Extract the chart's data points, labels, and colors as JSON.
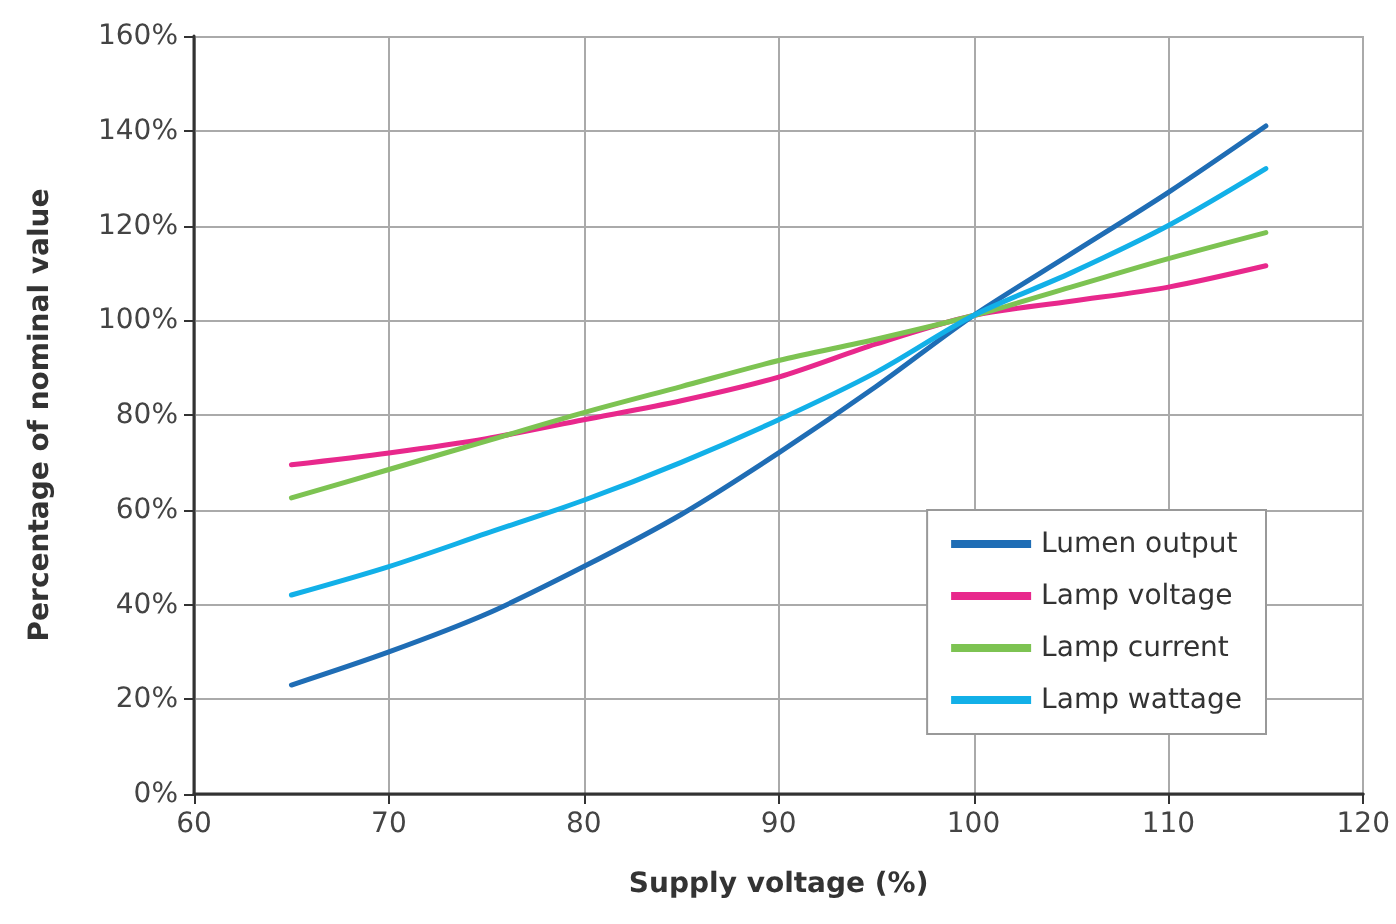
{
  "chart_data": {
    "type": "line",
    "xlabel": "Supply voltage (%)",
    "ylabel": "Percentage of nominal value",
    "x": [
      65,
      70,
      75,
      80,
      85,
      90,
      95,
      100,
      105,
      110,
      115
    ],
    "series": [
      {
        "name": "Lumen output",
        "color": "#1f6db5",
        "values": [
          23,
          30,
          38,
          48,
          59,
          72,
          86,
          101,
          114,
          127,
          141
        ]
      },
      {
        "name": "Lamp voltage",
        "color": "#e8288c",
        "values": [
          69.5,
          72,
          75,
          79,
          83,
          88,
          95,
          101,
          104,
          107,
          111.5
        ]
      },
      {
        "name": "Lamp current",
        "color": "#7dc352",
        "values": [
          62.5,
          68.5,
          74.5,
          80.5,
          86,
          91.5,
          96,
          101,
          107,
          113,
          118.5
        ]
      },
      {
        "name": "Lamp wattage",
        "color": "#12b0e8",
        "values": [
          42,
          48,
          55,
          62,
          70,
          79,
          89,
          101,
          110,
          120,
          132
        ]
      }
    ],
    "xlim": [
      60,
      120
    ],
    "xticks": [
      60,
      70,
      80,
      90,
      100,
      110,
      120
    ],
    "ylim": [
      0,
      160
    ],
    "yticks": [
      {
        "value": 0,
        "label": "0%"
      },
      {
        "value": 20,
        "label": "20%"
      },
      {
        "value": 40,
        "label": "40%"
      },
      {
        "value": 60,
        "label": "60%"
      },
      {
        "value": 80,
        "label": "80%"
      },
      {
        "value": 100,
        "label": "100%"
      },
      {
        "value": 120,
        "label": "120%"
      },
      {
        "value": 140,
        "label": "140%"
      },
      {
        "value": 160,
        "label": "160%"
      }
    ],
    "grid": true,
    "legend": "bottom right",
    "marker": "none",
    "line_style": "solid"
  }
}
